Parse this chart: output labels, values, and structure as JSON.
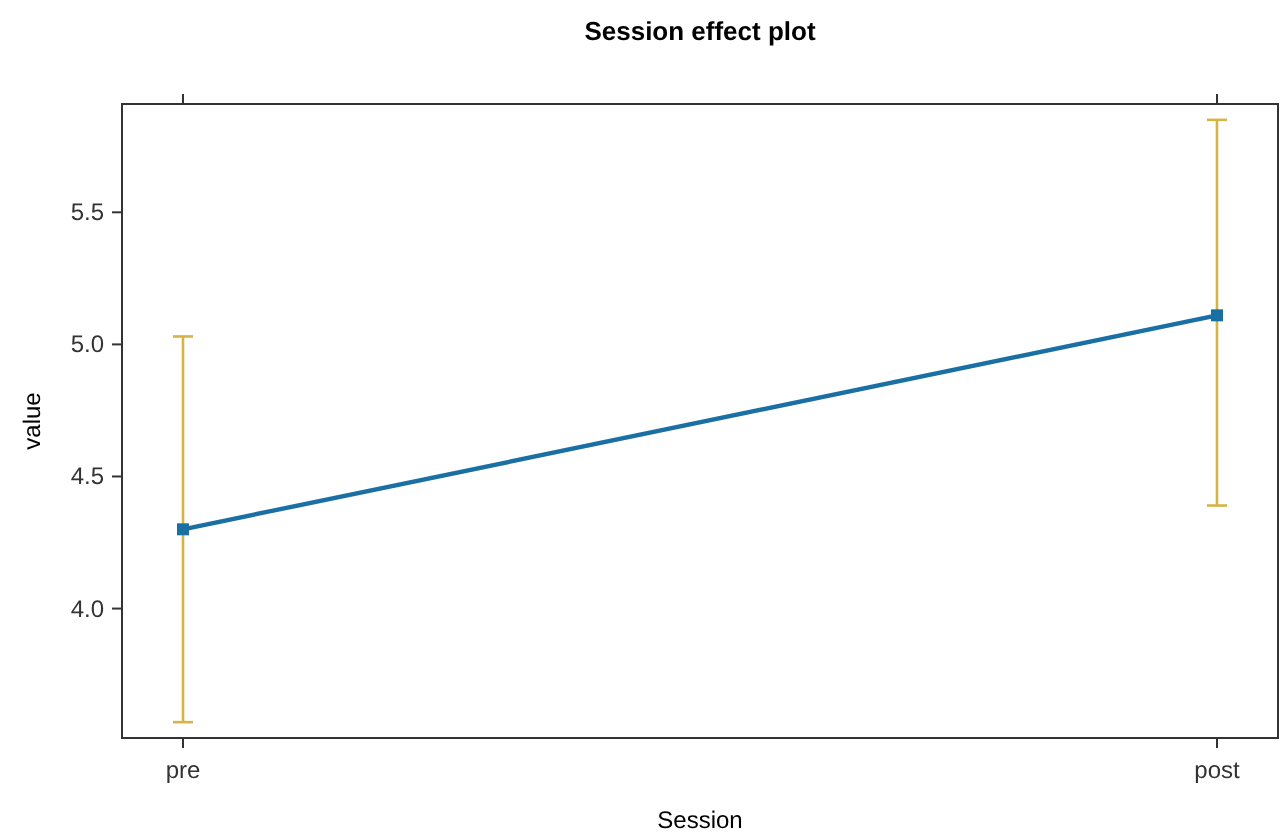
{
  "chart_data": {
    "type": "line",
    "title": "Session effect plot",
    "xlabel": "Session",
    "ylabel": "value",
    "categories": [
      "pre",
      "post"
    ],
    "series": [
      {
        "color": "#1a6fa3",
        "values": [
          4.3,
          5.11
        ],
        "errors": [
          [
            3.57,
            5.03
          ],
          [
            4.39,
            5.85
          ]
        ]
      }
    ],
    "ylim": [
      3.51,
      5.91
    ],
    "yticks": [
      {
        "value": 4.0,
        "label": "4.0"
      },
      {
        "value": 4.5,
        "label": "4.5"
      },
      {
        "value": 5.0,
        "label": "5.0"
      },
      {
        "value": 5.5,
        "label": "5.5"
      }
    ],
    "marker": "square",
    "line_style": "solid"
  }
}
